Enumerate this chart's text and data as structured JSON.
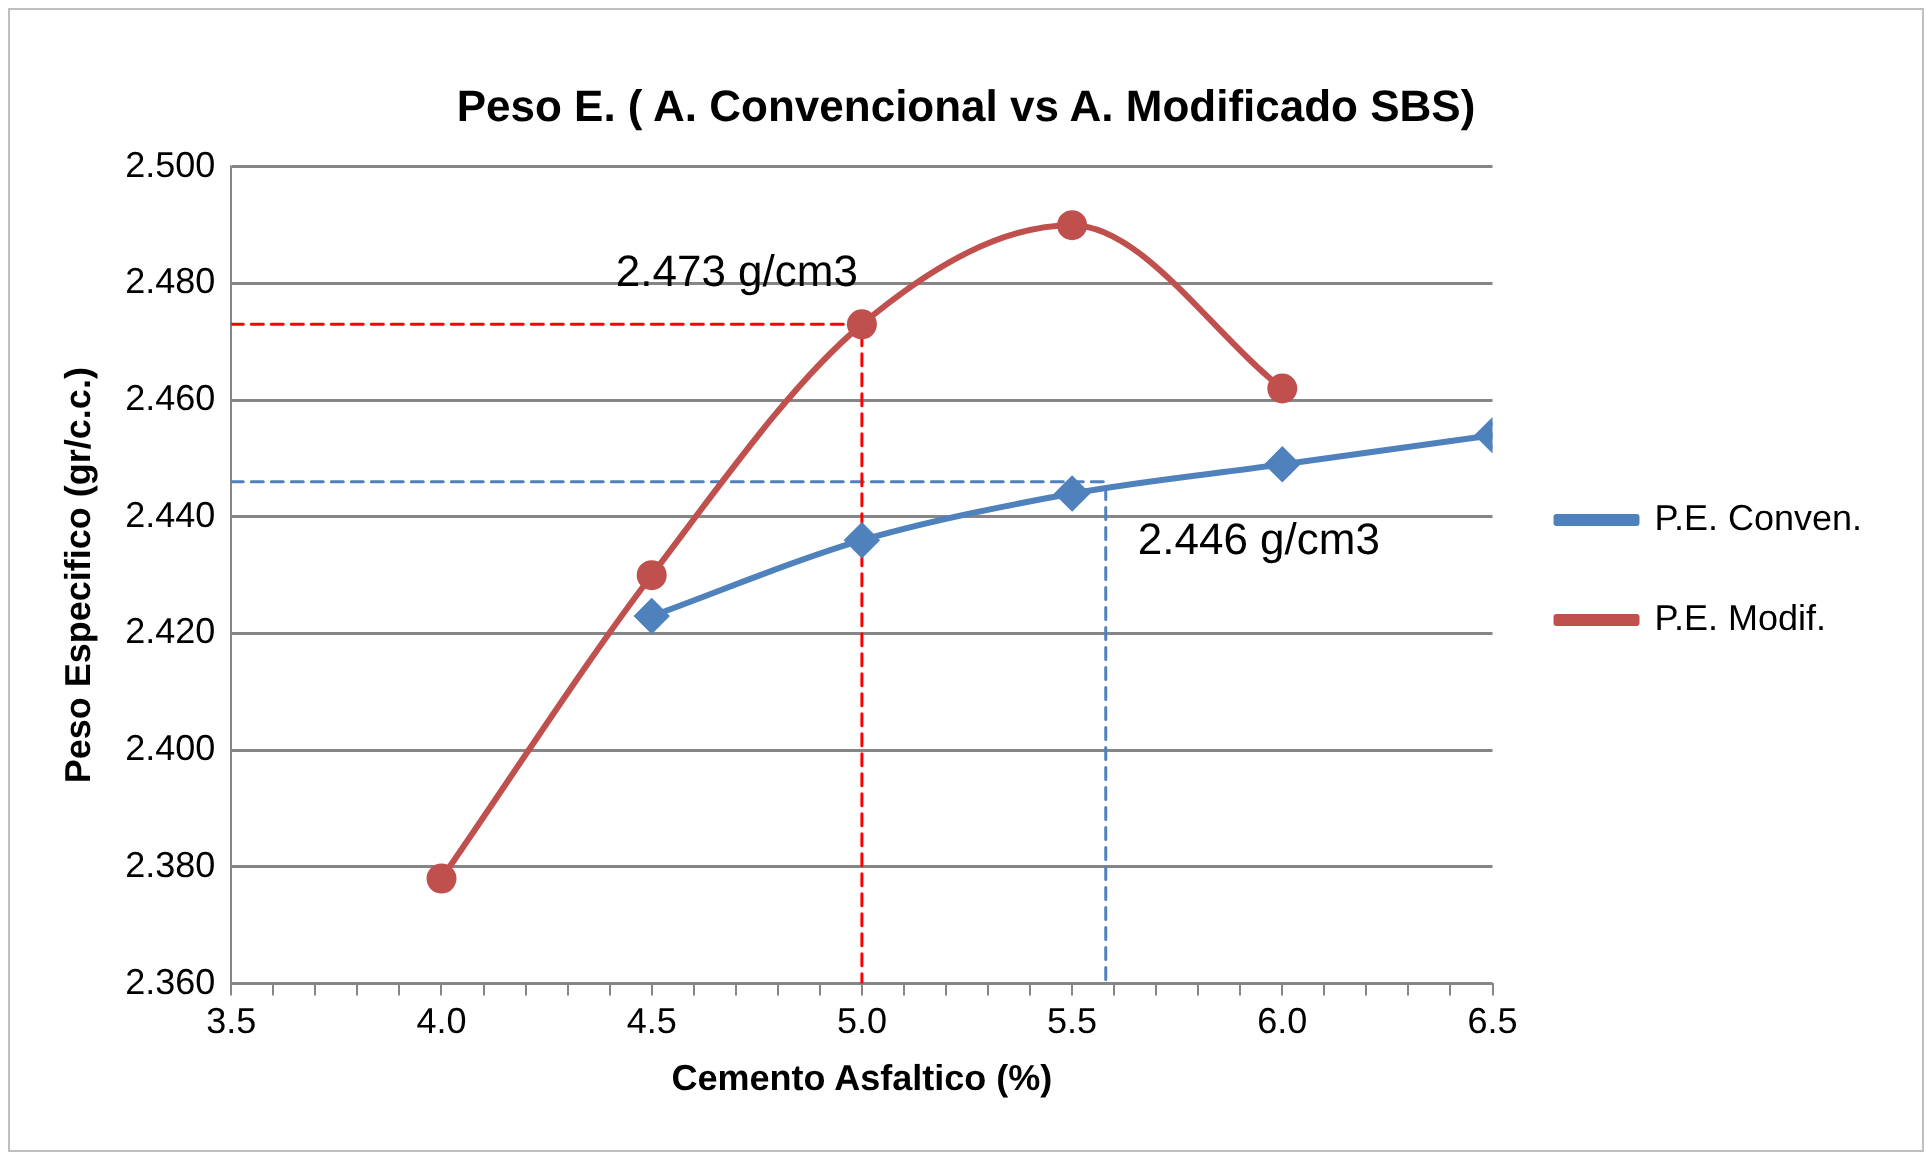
{
  "chart_data": {
    "type": "line",
    "title": "Peso E. ( A. Convencional vs A. Modificado SBS)",
    "xlabel": "Cemento Asfaltico (%)",
    "ylabel": "Peso Especifico (gr/c.c.)",
    "xlim": [
      3.5,
      6.5
    ],
    "xticks": [
      3.5,
      {
        "value": 3.6,
        "label": null
      },
      {
        "value": 3.7,
        "label": null
      },
      {
        "value": 3.8,
        "label": null
      },
      {
        "value": 3.9,
        "label": null
      },
      {
        "value": 4,
        "label": "4.0"
      },
      {
        "value": 4.1,
        "label": null
      },
      {
        "value": 4.2,
        "label": null
      },
      {
        "value": 4.3,
        "label": null
      },
      {
        "value": 4.4,
        "label": null
      },
      4.5,
      {
        "value": 4.6,
        "label": null
      },
      {
        "value": 4.7,
        "label": null
      },
      {
        "value": 4.8,
        "label": null
      },
      {
        "value": 4.9,
        "label": null
      },
      {
        "value": 5,
        "label": "5.0"
      },
      {
        "value": 5.1,
        "label": null
      },
      {
        "value": 5.2,
        "label": null
      },
      {
        "value": 5.3,
        "label": null
      },
      {
        "value": 5.4,
        "label": null
      },
      5.5,
      {
        "value": 5.6,
        "label": null
      },
      {
        "value": 5.7,
        "label": null
      },
      {
        "value": 5.8,
        "label": null
      },
      {
        "value": 5.9,
        "label": null
      },
      {
        "value": 6,
        "label": "6.0"
      },
      {
        "value": 6.1,
        "label": null
      },
      {
        "value": 6.2,
        "label": null
      },
      {
        "value": 6.3,
        "label": null
      },
      {
        "value": 6.4,
        "label": null
      },
      6.5
    ],
    "ylim": [
      2.36,
      2.5
    ],
    "yticks": [
      {
        "value": 2.36,
        "label": "2.360"
      },
      {
        "value": 2.38,
        "label": "2.380"
      },
      {
        "value": 2.4,
        "label": "2.400"
      },
      {
        "value": 2.42,
        "label": "2.420"
      },
      {
        "value": 2.44,
        "label": "2.440"
      },
      {
        "value": 2.46,
        "label": "2.460"
      },
      {
        "value": 2.48,
        "label": "2.480"
      },
      {
        "value": 2.5,
        "label": "2.500"
      }
    ],
    "grid": "y",
    "legend": "right",
    "series": [
      {
        "name": "P.E. Conven.",
        "color": "#4f81bd",
        "marker": "diamond",
        "x": [
          4.5,
          5,
          5.5,
          6,
          6.5
        ],
        "values": [
          2.423,
          2.436,
          2.444,
          2.449,
          2.454
        ]
      },
      {
        "name": "P.E. Modif.",
        "color": "#c0504d",
        "marker": "circle",
        "x": [
          4,
          4.5,
          5,
          5.5,
          6
        ],
        "values": [
          2.378,
          2.43,
          2.473,
          2.49,
          2.462
        ]
      },
      {
        "color": "#ff0000",
        "marker": "none",
        "line_style": "dashed",
        "x": [
          3.5,
          5,
          5
        ],
        "values": [
          2.473,
          2.473,
          2.36
        ]
      },
      {
        "color": "#4f81bd",
        "marker": "none",
        "line_style": "dashed",
        "x": [
          3.5,
          5.58,
          5.58
        ],
        "values": [
          2.446,
          2.446,
          2.36
        ]
      }
    ],
    "annotations": [
      {
        "text": "2.473 g/cm3",
        "x": 5,
        "y": 2.473
      },
      {
        "text": "2.446 g/cm3",
        "x": 5.58,
        "y": 2.446
      }
    ]
  }
}
